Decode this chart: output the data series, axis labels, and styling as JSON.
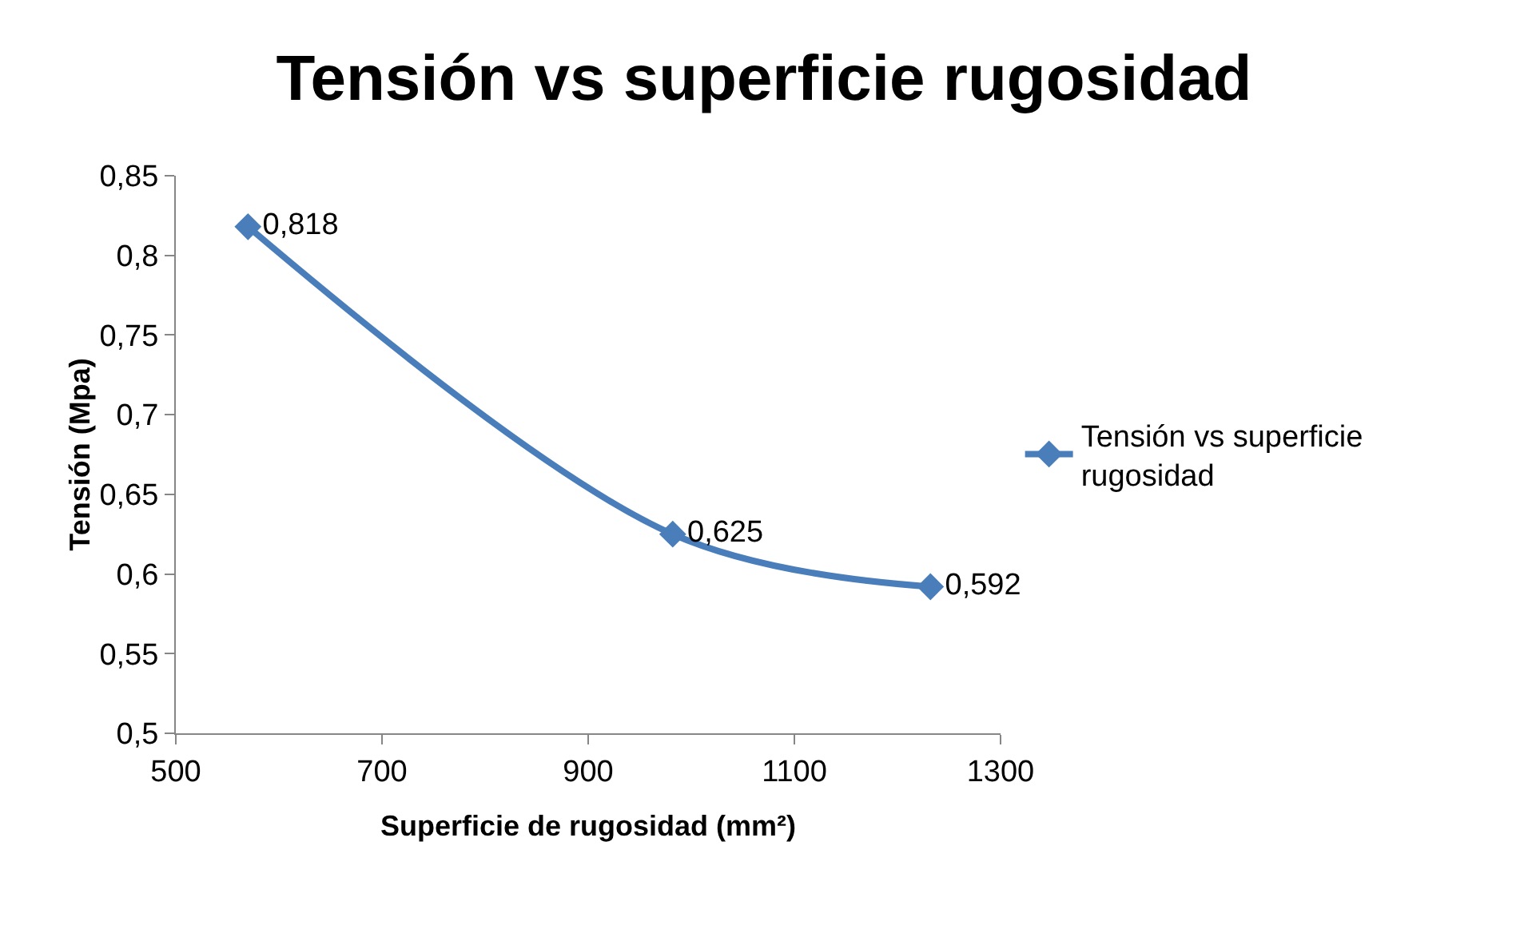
{
  "chart_data": {
    "type": "line",
    "title": "Tensión vs superficie rugosidad",
    "xlabel": "Superficie de rugosidad (mm²)",
    "ylabel": "Tensión (Mpa)",
    "x": [
      570,
      982,
      1232
    ],
    "series": [
      {
        "name": "Tensión vs superficie rugosidad",
        "color": "#4a7ebb",
        "values": [
          0.818,
          0.625,
          0.592
        ],
        "value_labels": [
          "0,818",
          "0,625",
          "0,592"
        ]
      }
    ],
    "xlim": [
      500,
      1300
    ],
    "xticks": [
      500,
      700,
      900,
      1100,
      1300
    ],
    "ylim": [
      0.5,
      0.85
    ],
    "yticks": [
      {
        "value": 0.5,
        "label": "0,5"
      },
      {
        "value": 0.55,
        "label": "0,55"
      },
      {
        "value": 0.6,
        "label": "0,6"
      },
      {
        "value": 0.65,
        "label": "0,65"
      },
      {
        "value": 0.7,
        "label": "0,7"
      },
      {
        "value": 0.75,
        "label": "0,75"
      },
      {
        "value": 0.8,
        "label": "0,8"
      },
      {
        "value": 0.85,
        "label": "0,85"
      }
    ],
    "grid": false,
    "legend": "right",
    "marker": "diamond",
    "line_style": "solid"
  }
}
